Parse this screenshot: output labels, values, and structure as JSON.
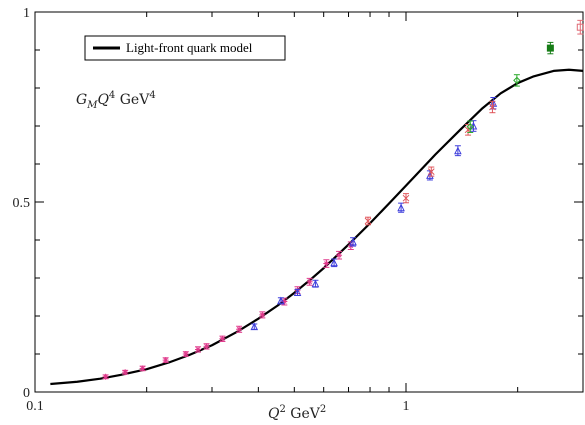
{
  "chart_data": {
    "type": "scatter",
    "x_scale": "log",
    "xlim": [
      0.1,
      3.0
    ],
    "ylim": [
      0,
      1
    ],
    "annotation": {
      "main": "G",
      "sub": "M",
      "mid": "Q",
      "sup1": "4",
      "unit": " GeV",
      "sup2": "4"
    },
    "xlabel": {
      "main": "Q",
      "sup1": "2",
      "unit": " GeV",
      "sup2": "2"
    },
    "x_ticks": [
      {
        "value": 0.1,
        "label": "0.1"
      },
      {
        "value": 1,
        "label": "1"
      }
    ],
    "y_ticks": [
      {
        "value": 0,
        "label": "0"
      },
      {
        "value": 0.5,
        "label": "0.5"
      },
      {
        "value": 1,
        "label": "1"
      }
    ],
    "legend": {
      "position": "top-left",
      "entries": [
        {
          "label": "Light-front quark model",
          "color": "#000000"
        }
      ]
    },
    "curve": {
      "name": "Light-front quark model",
      "color": "#000000",
      "x": [
        0.11,
        0.13,
        0.15,
        0.17,
        0.2,
        0.23,
        0.26,
        0.3,
        0.35,
        0.4,
        0.45,
        0.5,
        0.55,
        0.6,
        0.7,
        0.8,
        0.9,
        1.0,
        1.1,
        1.2,
        1.4,
        1.6,
        1.8,
        2.0,
        2.2,
        2.5,
        2.75,
        3.0
      ],
      "y": [
        0.021,
        0.027,
        0.035,
        0.045,
        0.06,
        0.078,
        0.097,
        0.123,
        0.158,
        0.193,
        0.227,
        0.261,
        0.294,
        0.326,
        0.388,
        0.444,
        0.496,
        0.543,
        0.586,
        0.625,
        0.69,
        0.745,
        0.786,
        0.813,
        0.83,
        0.845,
        0.848,
        0.845
      ]
    },
    "series": [
      {
        "color": "#e03a8c",
        "marker": "star",
        "x": [
          0.155,
          0.175,
          0.195,
          0.225,
          0.255,
          0.275,
          0.29,
          0.32,
          0.355,
          0.41,
          0.47,
          0.51,
          0.55,
          0.61,
          0.66,
          0.71
        ],
        "y": [
          0.04,
          0.052,
          0.062,
          0.084,
          0.1,
          0.112,
          0.12,
          0.14,
          0.165,
          0.203,
          0.238,
          0.268,
          0.29,
          0.338,
          0.36,
          0.385
        ],
        "err": [
          0.005,
          0.005,
          0.006,
          0.006,
          0.006,
          0.007,
          0.007,
          0.007,
          0.008,
          0.008,
          0.009,
          0.009,
          0.009,
          0.01,
          0.01,
          0.01
        ]
      },
      {
        "color": "#3d3ddb",
        "marker": "triangle",
        "x": [
          0.39,
          0.46,
          0.51,
          0.57,
          0.64,
          0.72,
          0.97,
          1.16,
          1.38,
          1.52,
          1.72
        ],
        "y": [
          0.172,
          0.24,
          0.262,
          0.285,
          0.34,
          0.395,
          0.485,
          0.57,
          0.635,
          0.7,
          0.76
        ],
        "err": [
          0.007,
          0.008,
          0.008,
          0.009,
          0.01,
          0.011,
          0.012,
          0.012,
          0.013,
          0.014,
          0.015
        ]
      },
      {
        "color": "#e0555a",
        "marker": "x",
        "x": [
          0.79,
          1.0,
          1.17,
          1.47,
          1.71
        ],
        "y": [
          0.45,
          0.51,
          0.58,
          0.69,
          0.75
        ],
        "err": [
          0.01,
          0.012,
          0.012,
          0.014,
          0.015
        ]
      },
      {
        "color": "#2aa82a",
        "marker": "diamond",
        "x": [
          1.49,
          1.99
        ],
        "y": [
          0.698,
          0.82
        ],
        "err": [
          0.015,
          0.015
        ]
      },
      {
        "color": "#177d17",
        "marker": "square",
        "x": [
          2.45
        ],
        "y": [
          0.905
        ],
        "err": [
          0.015
        ]
      },
      {
        "color": "#e06a75",
        "marker": "square-open",
        "x": [
          2.95
        ],
        "y": [
          0.96
        ],
        "err": [
          0.018
        ]
      }
    ]
  }
}
